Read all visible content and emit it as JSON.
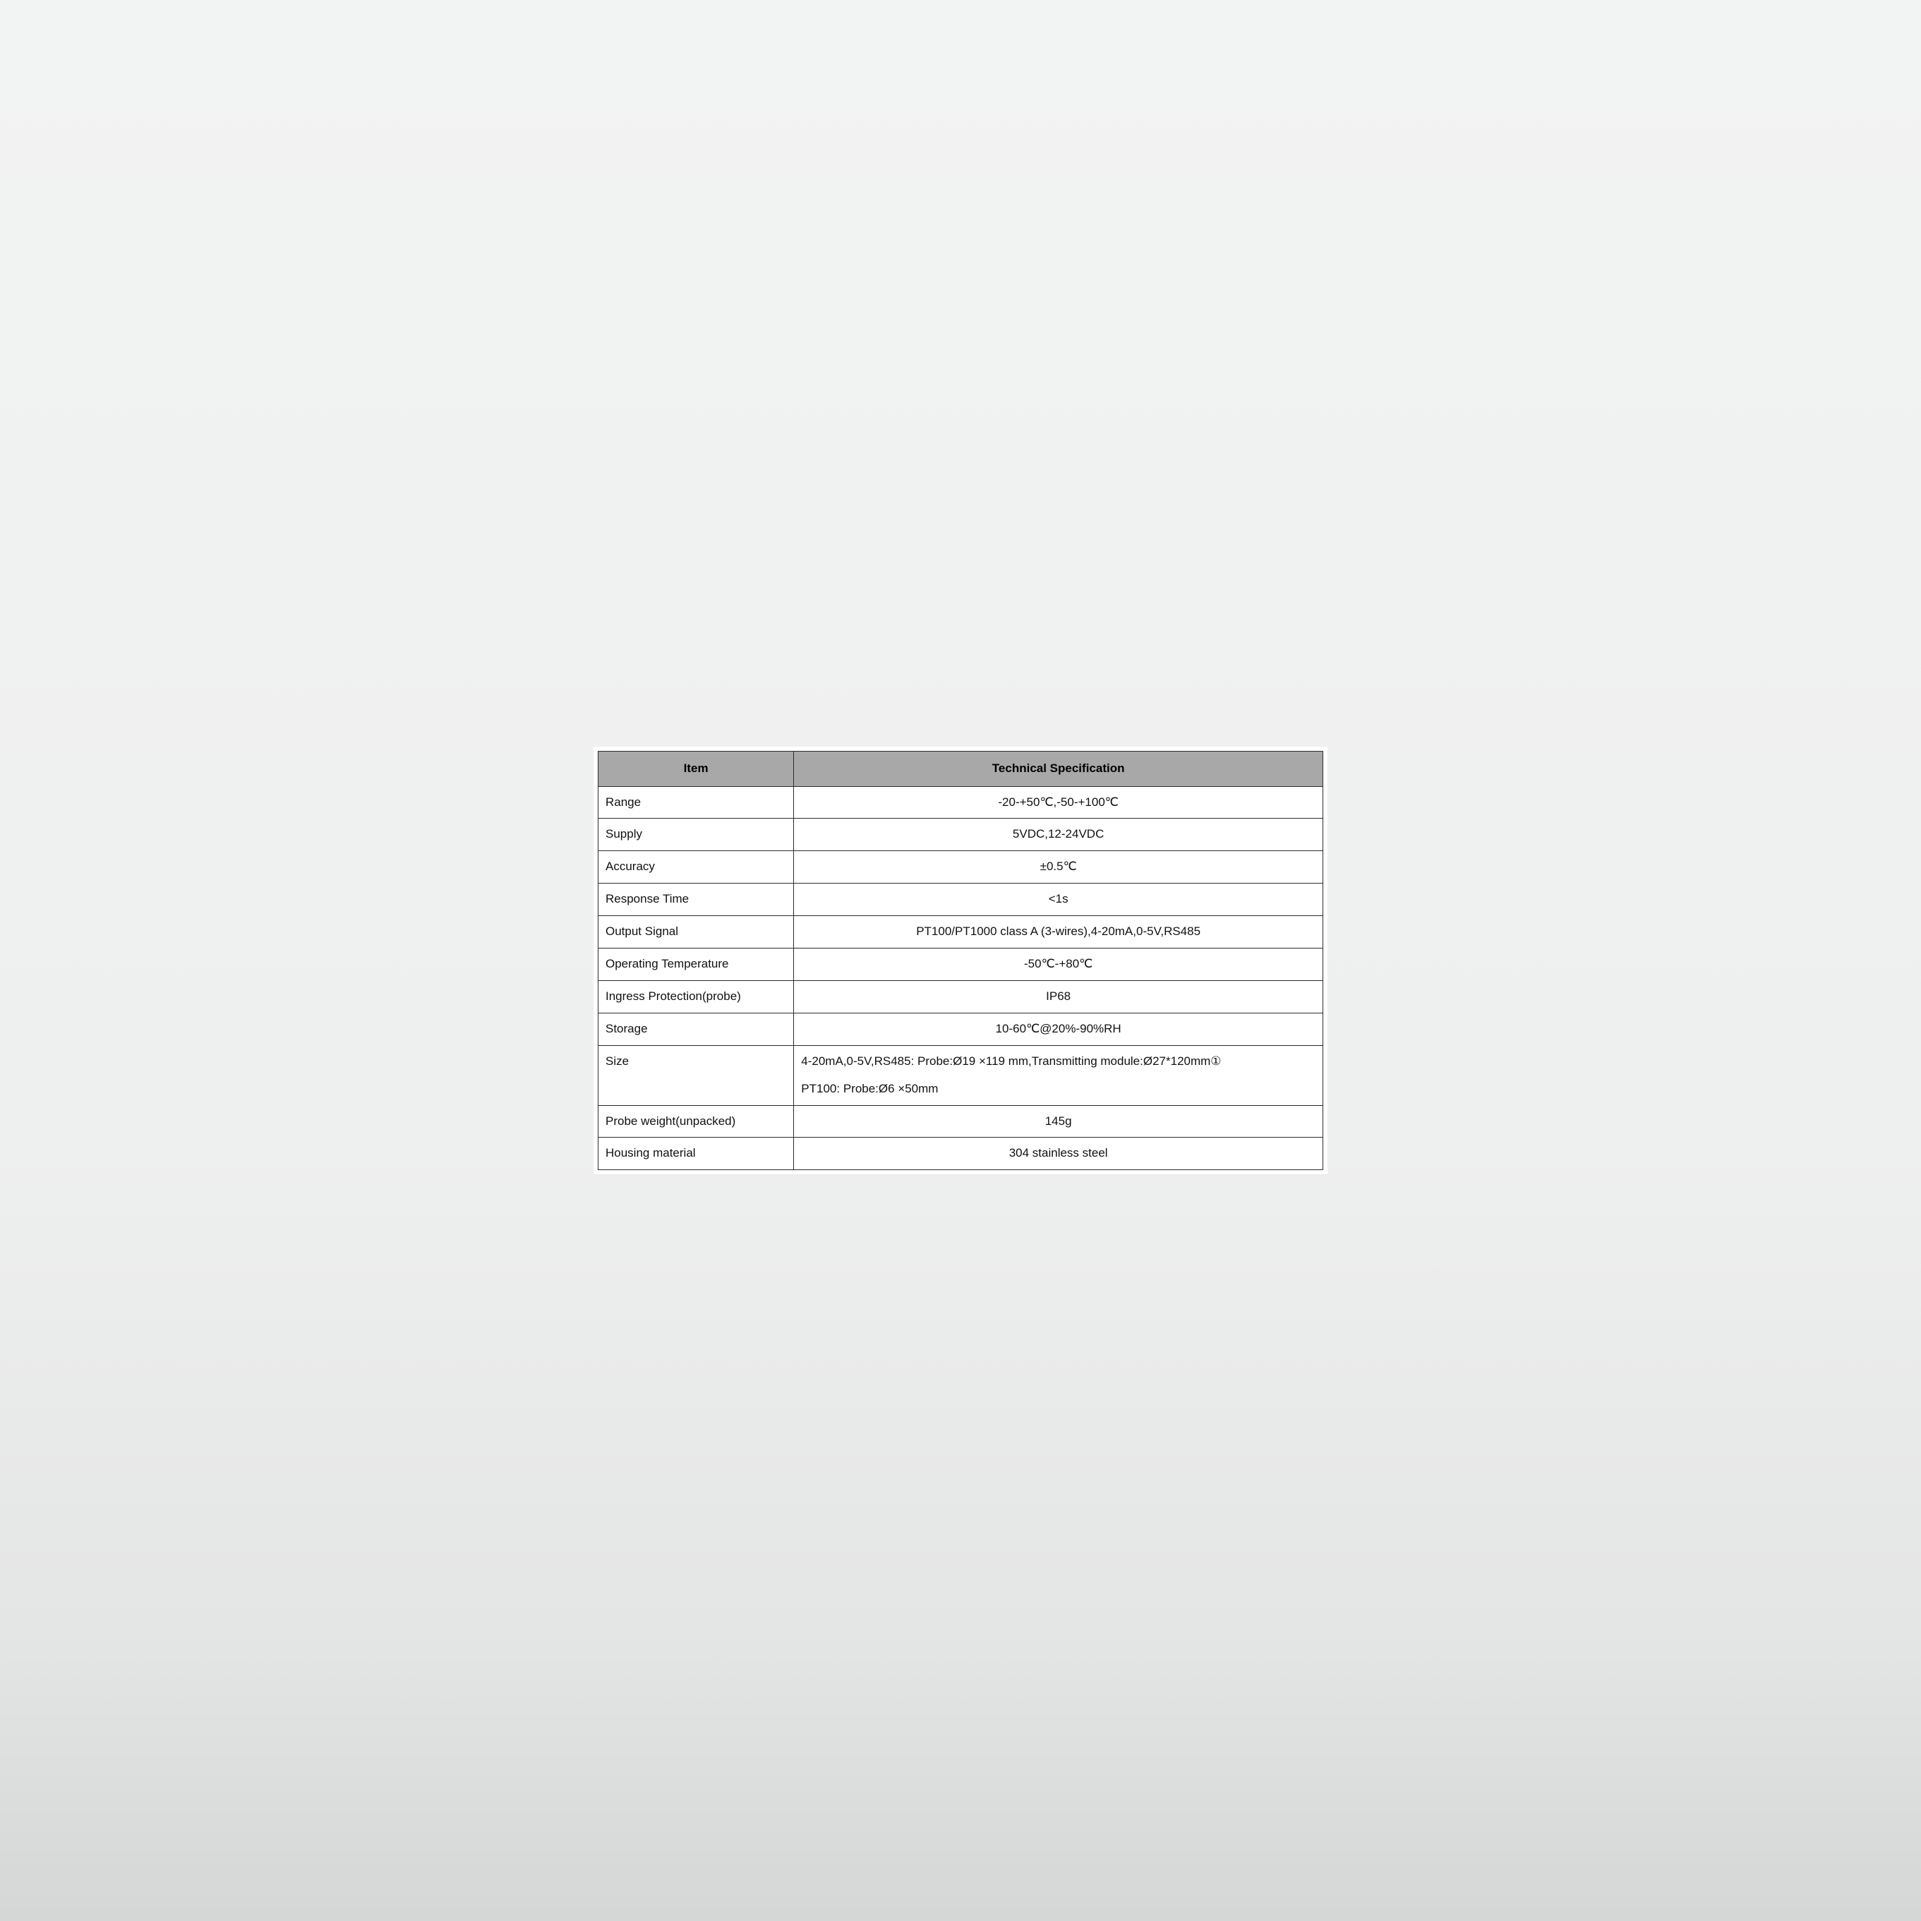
{
  "table": {
    "header_bg": "#a8a8a8",
    "border_color": "#2b2b2b",
    "text_color": "#111111",
    "font_size_pt": 13,
    "columns": [
      {
        "label": "Item",
        "width_pct": 27,
        "align": "left"
      },
      {
        "label": "Technical Specification",
        "width_pct": 73,
        "align": "center"
      }
    ],
    "rows": [
      {
        "item": "Range",
        "spec": "-20-+50℃,-50-+100℃",
        "align": "center"
      },
      {
        "item": "Supply",
        "spec": "5VDC,12-24VDC",
        "align": "center"
      },
      {
        "item": "Accuracy",
        "spec": "±0.5℃",
        "align": "center"
      },
      {
        "item": "Response Time",
        "spec": "<1s",
        "align": "center"
      },
      {
        "item": "Output Signal",
        "spec": "PT100/PT1000 class A (3-wires),4-20mA,0-5V,RS485",
        "align": "center"
      },
      {
        "item": "Operating Temperature",
        "spec": "-50℃-+80℃",
        "align": "center"
      },
      {
        "item": "Ingress Protection(probe)",
        "spec": "IP68",
        "align": "center"
      },
      {
        "item": "Storage",
        "spec": "10-60℃@20%-90%RH",
        "align": "center"
      },
      {
        "item": "Size",
        "spec_lines": [
          "4-20mA,0-5V,RS485: Probe:Ø19 ×119 mm,Transmitting module:Ø27*120mm①",
          "PT100: Probe:Ø6 ×50mm"
        ],
        "align": "left"
      },
      {
        "item": "Probe weight(unpacked)",
        "spec": "145g",
        "align": "center"
      },
      {
        "item": "Housing material",
        "spec": "304 stainless steel",
        "align": "center"
      }
    ]
  }
}
